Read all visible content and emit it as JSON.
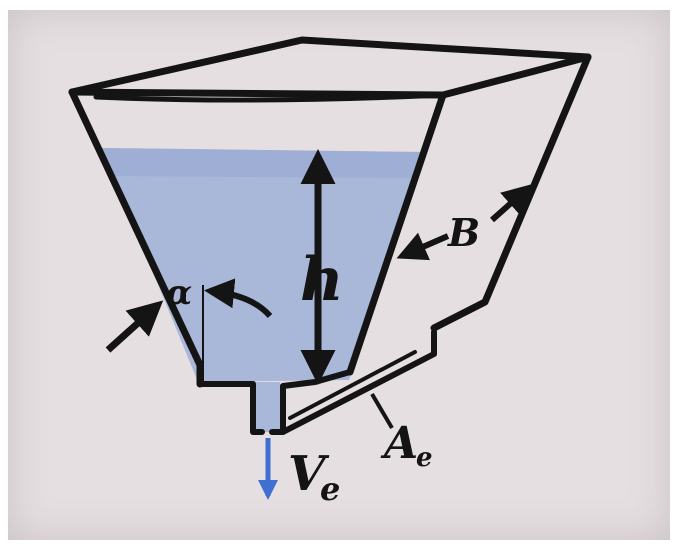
{
  "diagram": {
    "labels": {
      "height": "h",
      "width": "B",
      "angle": "α",
      "outlet_area": "A",
      "outlet_area_subscript": "e",
      "exit_velocity": "V",
      "exit_velocity_subscript": "e"
    },
    "colors": {
      "water": "#a9b7d9",
      "water_surface": "#9aaad2",
      "ink": "#141414",
      "paper": "#e6dfe1",
      "flow_arrow": "#3f6fd0"
    }
  }
}
